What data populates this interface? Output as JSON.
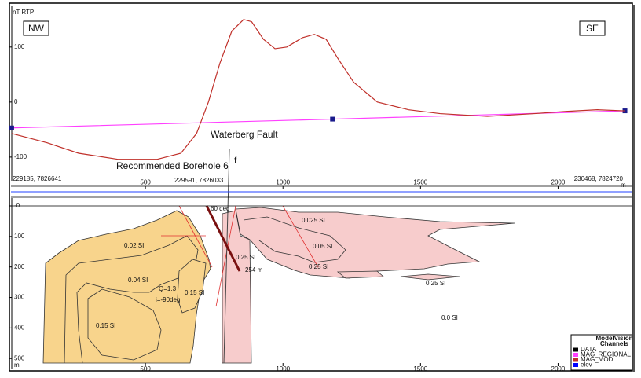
{
  "chart_data": [
    {
      "type": "line",
      "ylabel": "nT RTP",
      "left_label": "NW",
      "right_label": "SE",
      "annotations": [
        "Waterberg Fault",
        "Recommended Borehole 6",
        "f"
      ],
      "coordinates": [
        "229185, 7826641",
        "229591, 7826033",
        "230468, 7824720"
      ],
      "xunit": "m",
      "x": [
        14,
        143,
        257,
        400,
        543,
        629,
        686,
        729,
        771,
        814,
        857,
        886,
        929,
        971,
        1014,
        1071,
        1114,
        1157,
        1200,
        1257,
        1343,
        1457,
        1571,
        1743,
        1914,
        2029,
        2143,
        2243
      ],
      "series": [
        {
          "name": "MAG_REGIONAL",
          "color": "#ff40ff",
          "marker_color": "#1a1a8c",
          "x": [
            14,
            1180,
            2243
          ],
          "values": [
            -47,
            -31,
            -16
          ]
        },
        {
          "name": "MAG_MOD",
          "color": "#c0302a",
          "values": [
            -57,
            -74,
            -93,
            -104,
            -104,
            -93,
            -57,
            0,
            71,
            129,
            150,
            146,
            114,
            97,
            100,
            117,
            123,
            114,
            79,
            36,
            0,
            -14,
            -21,
            -26,
            -21,
            -17,
            -14,
            -16
          ]
        }
      ],
      "xlim": [
        0,
        2270
      ],
      "ylim": [
        -143,
        174
      ],
      "xticks": [
        500,
        1000,
        1500,
        2000
      ],
      "yticks": [
        -100,
        0,
        100
      ]
    },
    {
      "type": "section",
      "xlim": [
        0,
        2270
      ],
      "ylim": [
        0,
        520
      ],
      "y_inverted": true,
      "xticks": [
        500,
        1000,
        1500,
        2000
      ],
      "yticks": [
        {
          "value": 0,
          "label": "-0"
        },
        100,
        200,
        300,
        400,
        500
      ],
      "yunit": "m",
      "labels": [
        "0.02 SI",
        "0.04 SI",
        "Q=1.3",
        "i=-90deg",
        "0.15 SI",
        "0.15 SI",
        "0.25 SI",
        "254 m",
        "0.025 SI",
        "0.05 SI",
        "0.25 SI",
        "0.25 SI",
        "0.0 SI",
        "60 deg"
      ],
      "legend": {
        "title": "ModelVision",
        "subtitle": "Channels",
        "position": "bottom-right",
        "extra": [
          {
            "name": "DATA",
            "color": "#000000"
          },
          {
            "name": "elev",
            "color": "#0000ff"
          }
        ]
      }
    }
  ]
}
